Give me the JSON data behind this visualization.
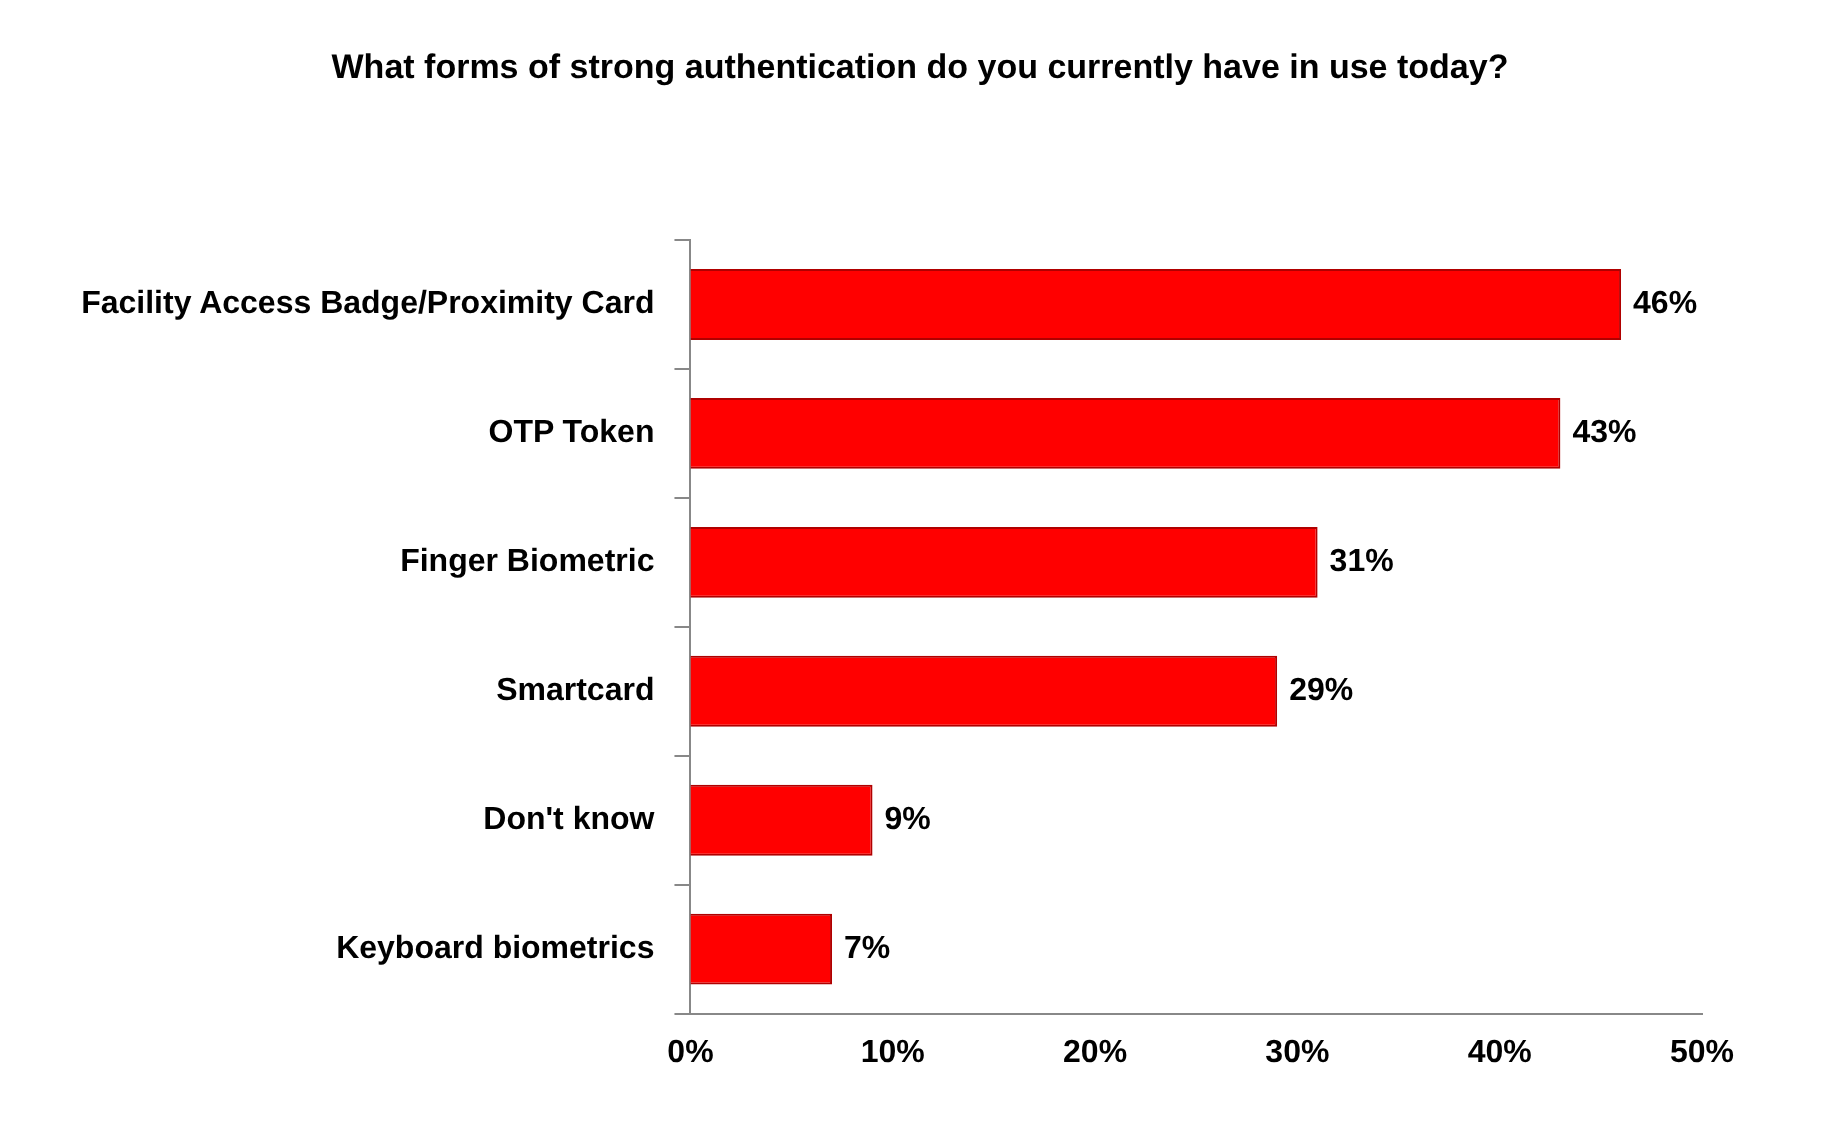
{
  "chart_data": {
    "type": "bar",
    "orientation": "horizontal",
    "title": "What forms of strong authentication do you currently have in use today?",
    "categories": [
      "Facility Access Badge/Proximity Card",
      "OTP Token",
      "Finger Biometric",
      "Smartcard",
      "Don't know",
      "Keyboard biometrics"
    ],
    "values": [
      46,
      43,
      31,
      29,
      9,
      7
    ],
    "value_labels": [
      "46%",
      "43%",
      "31%",
      "29%",
      "9%",
      "7%"
    ],
    "color": "#ff0000",
    "xlim": [
      0,
      50
    ],
    "xticks": [
      {
        "value": 0,
        "label": "0%"
      },
      {
        "value": 10,
        "label": "10%"
      },
      {
        "value": 20,
        "label": "20%"
      },
      {
        "value": 30,
        "label": "30%"
      },
      {
        "value": 40,
        "label": "40%"
      },
      {
        "value": 50,
        "label": "50%"
      }
    ],
    "grid": false,
    "legend": false
  }
}
